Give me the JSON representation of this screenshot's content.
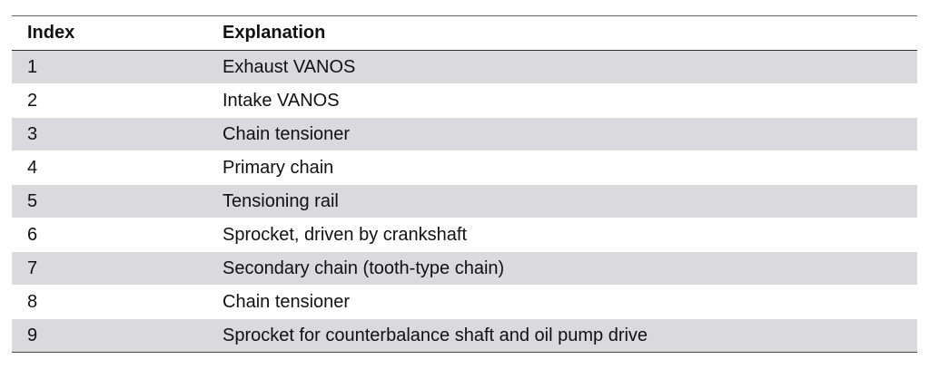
{
  "table": {
    "header": [
      "Index",
      "Explanation"
    ],
    "rows": [
      [
        "1",
        "Exhaust VANOS"
      ],
      [
        "2",
        "Intake VANOS"
      ],
      [
        "3",
        "Chain tensioner"
      ],
      [
        "4",
        "Primary chain"
      ],
      [
        "5",
        "Tensioning rail"
      ],
      [
        "6",
        "Sprocket, driven by crankshaft"
      ],
      [
        "7",
        "Secondary chain (tooth-type chain)"
      ],
      [
        "8",
        "Chain tensioner"
      ],
      [
        "9",
        "Sprocket for counterbalance shaft and oil pump drive"
      ]
    ]
  }
}
